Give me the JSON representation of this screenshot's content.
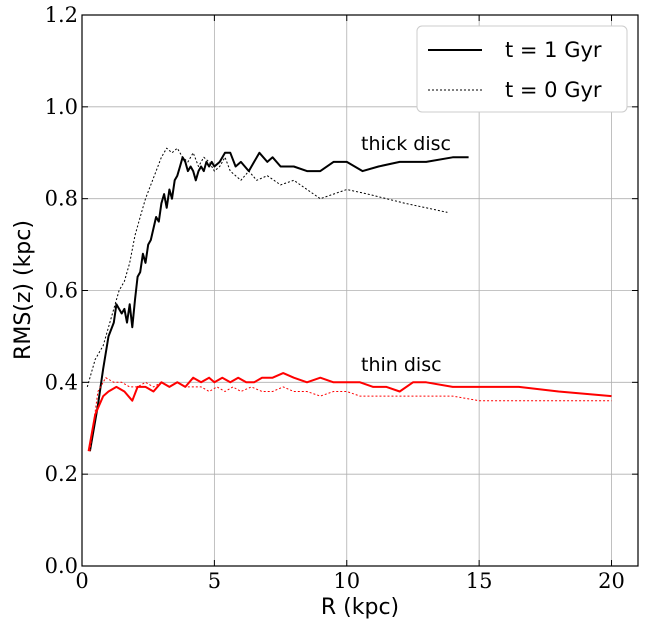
{
  "chart_data": {
    "type": "line",
    "xlabel": "R (kpc)",
    "ylabel": "RMS(z) (kpc)",
    "xlim": [
      0,
      21
    ],
    "ylim": [
      0.0,
      1.2
    ],
    "xticks": [
      0,
      5,
      10,
      15,
      20
    ],
    "xtick_labels": [
      "0",
      "5",
      "10",
      "15",
      "20"
    ],
    "yticks": [
      0.0,
      0.2,
      0.4,
      0.6,
      0.8,
      1.0,
      1.2
    ],
    "ytick_labels": [
      "0.0",
      "0.2",
      "0.4",
      "0.6",
      "0.8",
      "1.0",
      "1.2"
    ],
    "grid": true,
    "legend": {
      "position": "top-right",
      "entries": [
        {
          "label": "t = 1 Gyr",
          "style": "solid"
        },
        {
          "label": "t = 0 Gyr",
          "style": "dotted"
        }
      ]
    },
    "annotations": [
      {
        "text": "thick disc",
        "x": 10.5,
        "y": 0.91
      },
      {
        "text": "thin disc",
        "x": 10.5,
        "y": 0.425
      }
    ],
    "series": [
      {
        "group": "thick disc",
        "time": "t = 1 Gyr",
        "style": "solid",
        "color": "#000000",
        "x": [
          0.3,
          0.6,
          0.8,
          1.0,
          1.2,
          1.3,
          1.5,
          1.6,
          1.7,
          1.8,
          1.9,
          2.0,
          2.1,
          2.2,
          2.3,
          2.4,
          2.5,
          2.6,
          2.8,
          2.9,
          3.0,
          3.1,
          3.2,
          3.3,
          3.4,
          3.5,
          3.6,
          3.7,
          3.8,
          3.9,
          4.0,
          4.1,
          4.2,
          4.3,
          4.4,
          4.5,
          4.6,
          4.7,
          4.8,
          4.9,
          5.0,
          5.2,
          5.4,
          5.6,
          5.8,
          6.0,
          6.3,
          6.5,
          6.7,
          7.0,
          7.2,
          7.5,
          8.0,
          8.5,
          9.0,
          9.5,
          10.0,
          10.6,
          11.2,
          12.0,
          13.0,
          14.0,
          14.6
        ],
        "y": [
          0.25,
          0.35,
          0.43,
          0.5,
          0.53,
          0.57,
          0.55,
          0.56,
          0.53,
          0.57,
          0.52,
          0.58,
          0.63,
          0.64,
          0.68,
          0.66,
          0.7,
          0.71,
          0.76,
          0.75,
          0.79,
          0.81,
          0.78,
          0.82,
          0.8,
          0.84,
          0.85,
          0.87,
          0.89,
          0.88,
          0.86,
          0.87,
          0.86,
          0.84,
          0.86,
          0.87,
          0.86,
          0.88,
          0.87,
          0.88,
          0.87,
          0.88,
          0.9,
          0.9,
          0.87,
          0.88,
          0.86,
          0.88,
          0.9,
          0.88,
          0.89,
          0.87,
          0.87,
          0.86,
          0.86,
          0.88,
          0.88,
          0.86,
          0.87,
          0.88,
          0.88,
          0.89,
          0.89
        ]
      },
      {
        "group": "thick disc",
        "time": "t = 0 Gyr",
        "style": "dotted",
        "color": "#000000",
        "x": [
          0.2,
          0.5,
          0.8,
          1.0,
          1.2,
          1.4,
          1.6,
          1.8,
          2.0,
          2.2,
          2.4,
          2.6,
          2.8,
          3.0,
          3.2,
          3.4,
          3.6,
          3.8,
          4.0,
          4.2,
          4.4,
          4.6,
          4.8,
          5.0,
          5.2,
          5.4,
          5.6,
          5.8,
          6.0,
          6.3,
          6.6,
          7.0,
          7.5,
          8.0,
          8.5,
          9.0,
          9.5,
          10.0,
          10.8,
          11.5,
          12.2,
          13.0,
          13.8
        ],
        "y": [
          0.39,
          0.45,
          0.48,
          0.52,
          0.56,
          0.6,
          0.62,
          0.66,
          0.72,
          0.76,
          0.8,
          0.83,
          0.86,
          0.89,
          0.91,
          0.9,
          0.91,
          0.89,
          0.88,
          0.9,
          0.87,
          0.89,
          0.88,
          0.86,
          0.87,
          0.89,
          0.86,
          0.85,
          0.84,
          0.86,
          0.84,
          0.85,
          0.83,
          0.84,
          0.82,
          0.8,
          0.81,
          0.82,
          0.81,
          0.8,
          0.79,
          0.78,
          0.77
        ]
      },
      {
        "group": "thin disc",
        "time": "t = 1 Gyr",
        "style": "solid",
        "color": "#ff0000",
        "x": [
          0.25,
          0.5,
          0.8,
          1.0,
          1.3,
          1.6,
          1.9,
          2.1,
          2.4,
          2.7,
          3.0,
          3.3,
          3.6,
          3.9,
          4.2,
          4.5,
          4.8,
          5.0,
          5.3,
          5.6,
          5.9,
          6.2,
          6.5,
          6.8,
          7.2,
          7.6,
          8.0,
          8.5,
          9.0,
          9.5,
          10.0,
          10.5,
          11.0,
          11.5,
          12.0,
          12.5,
          13.0,
          14.0,
          15.0,
          16.5,
          18.0,
          20.0
        ],
        "y": [
          0.25,
          0.33,
          0.37,
          0.38,
          0.39,
          0.38,
          0.36,
          0.39,
          0.39,
          0.38,
          0.4,
          0.39,
          0.4,
          0.39,
          0.41,
          0.4,
          0.41,
          0.4,
          0.41,
          0.4,
          0.41,
          0.4,
          0.4,
          0.41,
          0.41,
          0.42,
          0.41,
          0.4,
          0.41,
          0.4,
          0.4,
          0.4,
          0.39,
          0.39,
          0.38,
          0.4,
          0.4,
          0.39,
          0.39,
          0.39,
          0.38,
          0.37
        ]
      },
      {
        "group": "thin disc",
        "time": "t = 0 Gyr",
        "style": "dotted",
        "color": "#ff0000",
        "x": [
          0.3,
          0.6,
          0.9,
          1.2,
          1.5,
          1.8,
          2.1,
          2.4,
          2.7,
          3.0,
          3.3,
          3.6,
          3.9,
          4.2,
          4.5,
          4.8,
          5.1,
          5.4,
          5.7,
          6.0,
          6.4,
          6.8,
          7.2,
          7.6,
          8.0,
          8.5,
          9.0,
          9.5,
          10.0,
          10.5,
          11.0,
          12.0,
          13.0,
          14.0,
          15.0,
          16.0,
          18.0,
          20.0
        ],
        "y": [
          0.25,
          0.38,
          0.41,
          0.4,
          0.4,
          0.39,
          0.39,
          0.4,
          0.39,
          0.4,
          0.39,
          0.4,
          0.39,
          0.39,
          0.39,
          0.38,
          0.39,
          0.38,
          0.39,
          0.38,
          0.39,
          0.38,
          0.38,
          0.39,
          0.38,
          0.38,
          0.37,
          0.38,
          0.38,
          0.37,
          0.37,
          0.37,
          0.37,
          0.37,
          0.36,
          0.36,
          0.36,
          0.36
        ]
      }
    ]
  }
}
